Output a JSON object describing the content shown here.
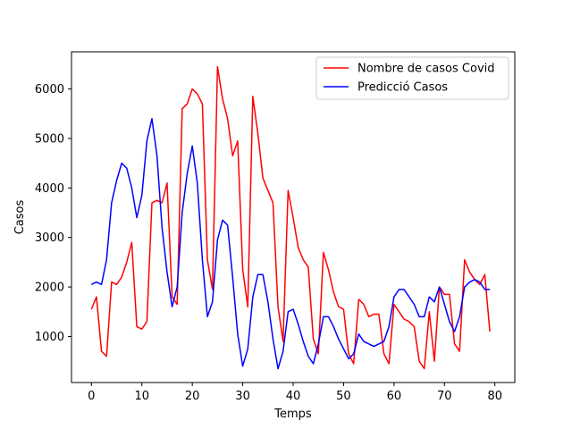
{
  "chart_data": {
    "type": "line",
    "xlabel": "Temps",
    "ylabel": "Casos",
    "xlim": [
      -3.95,
      83.95
    ],
    "ylim": [
      70,
      6750
    ],
    "xticks": [
      0,
      10,
      20,
      30,
      40,
      50,
      60,
      70,
      80
    ],
    "yticks": [
      1000,
      2000,
      3000,
      4000,
      5000,
      6000
    ],
    "grid": false,
    "legend_position": "top-right",
    "x": [
      0,
      1,
      2,
      3,
      4,
      5,
      6,
      7,
      8,
      9,
      10,
      11,
      12,
      13,
      14,
      15,
      16,
      17,
      18,
      19,
      20,
      21,
      22,
      23,
      24,
      25,
      26,
      27,
      28,
      29,
      30,
      31,
      32,
      33,
      34,
      35,
      36,
      37,
      38,
      39,
      40,
      41,
      42,
      43,
      44,
      45,
      46,
      47,
      48,
      49,
      50,
      51,
      52,
      53,
      54,
      55,
      56,
      57,
      58,
      59,
      60,
      61,
      62,
      63,
      64,
      65,
      66,
      67,
      68,
      69,
      70,
      71,
      72,
      73,
      74,
      75,
      76,
      77,
      78,
      79
    ],
    "series": [
      {
        "name": "Nombre de casos Covid",
        "color": "#ff0000",
        "values": [
          1550,
          1800,
          700,
          600,
          2100,
          2050,
          2200,
          2500,
          2900,
          1200,
          1150,
          1300,
          3700,
          3750,
          3700,
          4100,
          1800,
          1650,
          5600,
          5700,
          6000,
          5900,
          5700,
          2550,
          1950,
          6450,
          5800,
          5400,
          4650,
          4950,
          2350,
          1600,
          5850,
          5100,
          4200,
          3950,
          3700,
          1600,
          900,
          3950,
          3400,
          2800,
          2550,
          2400,
          950,
          650,
          2700,
          2350,
          1900,
          1600,
          1550,
          650,
          450,
          1750,
          1650,
          1400,
          1450,
          1450,
          650,
          450,
          1650,
          1500,
          1350,
          1300,
          1200,
          500,
          350,
          1500,
          500,
          2000,
          1850,
          1850,
          850,
          700,
          2550,
          2300,
          2150,
          2050,
          2250,
          1100
        ]
      },
      {
        "name": "Predicció Casos",
        "color": "#0000ff",
        "values": [
          2050,
          2100,
          2050,
          2550,
          3700,
          4150,
          4500,
          4400,
          4000,
          3400,
          3850,
          4950,
          5400,
          4650,
          3200,
          2300,
          1600,
          2000,
          3500,
          4300,
          4850,
          4100,
          2550,
          1400,
          1700,
          2950,
          3350,
          3250,
          2200,
          1050,
          400,
          750,
          1800,
          2250,
          2250,
          1700,
          950,
          350,
          700,
          1500,
          1550,
          1250,
          900,
          600,
          450,
          850,
          1400,
          1400,
          1200,
          950,
          750,
          550,
          650,
          1050,
          900,
          850,
          800,
          850,
          900,
          1200,
          1800,
          1950,
          1950,
          1800,
          1650,
          1400,
          1400,
          1800,
          1700,
          2000,
          1650,
          1300,
          1100,
          1400,
          2000,
          2100,
          2150,
          2100,
          1950,
          1950
        ]
      }
    ]
  }
}
